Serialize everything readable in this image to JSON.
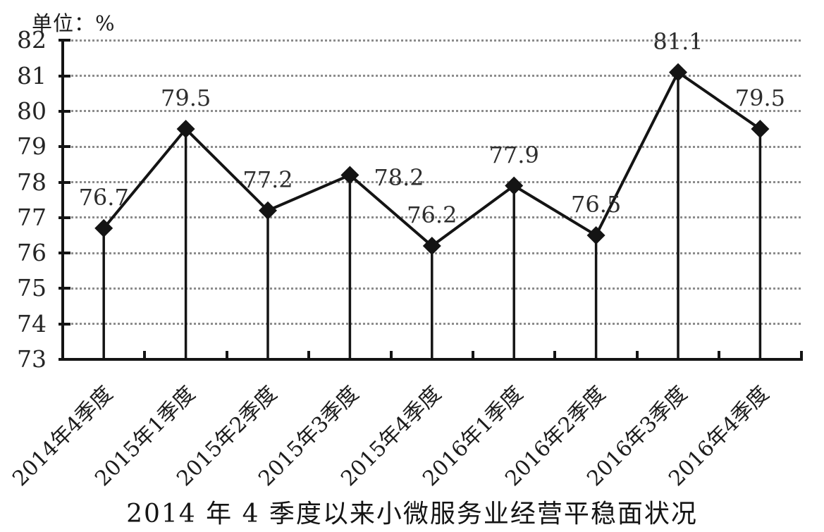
{
  "unit_label": "单位：%",
  "title": "2014 年 4 季度以来小微服务业经营平稳面状况",
  "chart_data": {
    "type": "line",
    "title": "2014 年 4 季度以来小微服务业经营平稳面状况",
    "ylabel": "单位：%",
    "xlabel": "",
    "categories": [
      "2014年4季度",
      "2015年1季度",
      "2015年2季度",
      "2015年3季度",
      "2015年4季度",
      "2016年1季度",
      "2016年2季度",
      "2016年3季度",
      "2016年4季度"
    ],
    "values": [
      76.7,
      79.5,
      77.2,
      78.2,
      76.2,
      77.9,
      76.5,
      81.1,
      79.5
    ],
    "point_labels": [
      "76.7",
      "79.5",
      "77.2",
      "78.2",
      "76.2",
      "77.9",
      "76.5",
      "81.1",
      "79.5"
    ],
    "yticks": [
      82,
      81,
      80,
      79,
      78,
      77,
      76,
      75,
      74,
      73
    ],
    "ylim": [
      73,
      82
    ],
    "grid": "horizontal dotted",
    "legend": "none",
    "marker": "diamond",
    "drop_lines": "vertical to baseline",
    "line_color": "#141414",
    "marker_color": "#141414",
    "grid_color": "#8c8c8c"
  }
}
